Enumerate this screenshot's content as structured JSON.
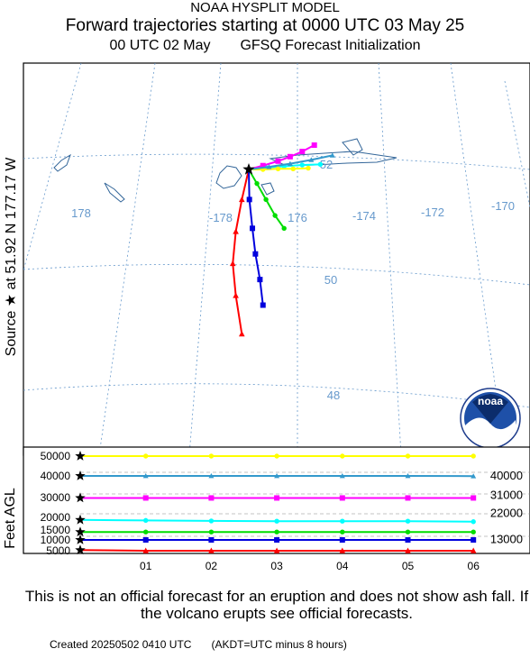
{
  "header": {
    "line1": "NOAA HYSPLIT MODEL",
    "line2": "Forward trajectories starting at 0000 UTC 03 May 25",
    "line3_left": "00 UTC 02 May",
    "line3_right": "GFSQ  Forecast Initialization"
  },
  "source_label": "Source ★  at   51.92 N  177.17 W",
  "feet_label": "Feet AGL",
  "logo_text": "noaa",
  "disclaimer": "This is not an official forecast for an eruption and does not show ash fall. If the volcano erupts see official forecasts.",
  "footer": {
    "created": "Created 20250502 0410 UTC",
    "note": "(AKDT=UTC minus 8 hours)"
  },
  "colors": {
    "red": "#ff0000",
    "blue": "#0000dd",
    "green": "#00dd00",
    "cyan": "#00ffff",
    "magenta": "#ff00ff",
    "yellow": "#ffff00",
    "steelblue": "#3399cc",
    "grid": "#6699cc",
    "land": "#336699"
  },
  "chart_data": [
    {
      "type": "map",
      "source": {
        "lat": 51.92,
        "lon": -177.17
      },
      "lon_labels": [
        "178",
        "-178",
        "176",
        "-174",
        "-172",
        "-170"
      ],
      "lat_labels": [
        "52",
        "50",
        "48"
      ],
      "series": [
        {
          "color": "red",
          "points": [
            [
              -177.17,
              51.92
            ],
            [
              -177.4,
              51.45
            ],
            [
              -177.6,
              50.95
            ],
            [
              -177.7,
              50.45
            ],
            [
              -177.6,
              49.95
            ],
            [
              -177.4,
              49.35
            ]
          ]
        },
        {
          "color": "blue",
          "points": [
            [
              -177.17,
              51.92
            ],
            [
              -177.15,
              51.45
            ],
            [
              -177.05,
              51.0
            ],
            [
              -176.95,
              50.6
            ],
            [
              -176.8,
              50.2
            ],
            [
              -176.7,
              49.8
            ]
          ]
        },
        {
          "color": "green",
          "points": [
            [
              -177.17,
              51.92
            ],
            [
              -176.9,
              51.7
            ],
            [
              -176.6,
              51.45
            ],
            [
              -176.3,
              51.2
            ],
            [
              -176.0,
              51.0
            ]
          ]
        },
        {
          "color": "cyan",
          "points": [
            [
              -177.17,
              51.92
            ],
            [
              -176.6,
              51.95
            ],
            [
              -176.0,
              51.97
            ],
            [
              -175.4,
              51.99
            ],
            [
              -174.8,
              52.0
            ]
          ]
        },
        {
          "color": "magenta",
          "points": [
            [
              -177.17,
              51.92
            ],
            [
              -176.7,
              51.98
            ],
            [
              -176.2,
              52.05
            ],
            [
              -175.8,
              52.12
            ],
            [
              -175.4,
              52.2
            ],
            [
              -175.0,
              52.3
            ]
          ]
        },
        {
          "color": "yellow",
          "points": [
            [
              -177.17,
              51.92
            ],
            [
              -176.7,
              51.92
            ],
            [
              -176.2,
              51.93
            ],
            [
              -175.7,
              51.93
            ],
            [
              -175.2,
              51.94
            ]
          ]
        },
        {
          "color": "steelblue",
          "points": [
            [
              -177.17,
              51.92
            ],
            [
              -176.5,
              51.96
            ],
            [
              -175.8,
              52.01
            ],
            [
              -175.1,
              52.07
            ],
            [
              -174.4,
              52.14
            ]
          ]
        }
      ]
    },
    {
      "type": "line",
      "xlabel": "",
      "ylabel": "Feet AGL",
      "x_tick_labels": [
        "01",
        "02",
        "03",
        "04",
        "05",
        "06"
      ],
      "x_hours": [
        0,
        1,
        2,
        3,
        4,
        5,
        6
      ],
      "y_tick_labels": [
        "50000",
        "40000",
        "30000",
        "20000",
        "15000",
        "10000",
        "5000"
      ],
      "right_labels": [
        {
          "text": "40000",
          "value": 40000
        },
        {
          "text": "31000",
          "value": 31000
        },
        {
          "text": "22000",
          "value": 22000
        },
        {
          "text": "13000",
          "value": 13000
        }
      ],
      "series": [
        {
          "color": "yellow",
          "values": [
            50000,
            50000,
            50000,
            50000,
            50000,
            50000,
            50000
          ]
        },
        {
          "color": "steelblue",
          "values": [
            40000,
            40000,
            40000,
            40000,
            40000,
            40000,
            39900
          ]
        },
        {
          "color": "magenta",
          "values": [
            29800,
            29800,
            29800,
            29800,
            29800,
            29800,
            29800
          ]
        },
        {
          "color": "cyan",
          "values": [
            19000,
            18800,
            18600,
            18500,
            18500,
            18500,
            18300
          ]
        },
        {
          "color": "green",
          "values": [
            14000,
            14000,
            14000,
            14000,
            14000,
            14000,
            14000
          ]
        },
        {
          "color": "blue",
          "values": [
            10000,
            10000,
            10000,
            10000,
            10000,
            10000,
            10000
          ]
        },
        {
          "color": "red",
          "values": [
            5300,
            5000,
            4900,
            4800,
            4800,
            4800,
            4800
          ]
        }
      ]
    }
  ]
}
